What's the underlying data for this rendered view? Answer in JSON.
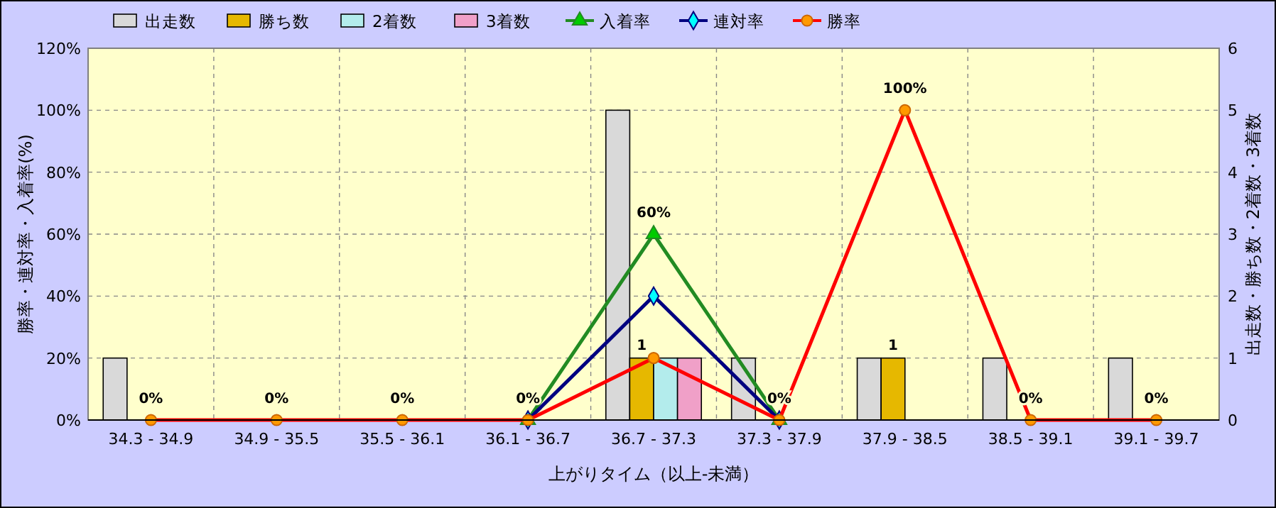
{
  "chart_data": {
    "type": "bar",
    "xlabel": "上がりタイム（以上-未満）",
    "ylabel": "勝率・連対率・入着率(%)",
    "y2label": "出走数・勝ち数・2着数・3着数",
    "categories": [
      "34.3 - 34.9",
      "34.9 - 35.5",
      "35.5 - 36.1",
      "36.1 - 36.7",
      "36.7 - 37.3",
      "37.3 - 37.9",
      "37.9 - 38.5",
      "38.5 - 39.1",
      "39.1 - 39.7"
    ],
    "ylim": [
      0,
      120
    ],
    "yticks": [
      {
        "value": 0,
        "label": "0%"
      },
      {
        "value": 20,
        "label": "20%"
      },
      {
        "value": 40,
        "label": "40%"
      },
      {
        "value": 60,
        "label": "60%"
      },
      {
        "value": 80,
        "label": "80%"
      },
      {
        "value": 100,
        "label": "100%"
      },
      {
        "value": 120,
        "label": "120%"
      }
    ],
    "y2lim": [
      0,
      6
    ],
    "y2ticks": [
      0,
      1,
      2,
      3,
      4,
      5,
      6
    ],
    "grid": true,
    "legend": "top left",
    "series": [
      {
        "name": "出走数",
        "axis": "y2",
        "color": "#d9d9d9",
        "values": [
          1,
          0,
          0,
          0,
          5,
          1,
          1,
          1,
          1
        ]
      },
      {
        "name": "勝ち数",
        "axis": "y2",
        "color": "#e6b800",
        "values": [
          0,
          0,
          0,
          0,
          1,
          0,
          1,
          0,
          0
        ],
        "value_labels": [
          null,
          null,
          null,
          null,
          "1",
          null,
          "1",
          null,
          null
        ]
      },
      {
        "name": "2着数",
        "axis": "y2",
        "color": "#b3ecec",
        "values": [
          0,
          0,
          0,
          0,
          1,
          0,
          0,
          0,
          0
        ]
      },
      {
        "name": "3着数",
        "axis": "y2",
        "color": "#f0a0c8",
        "values": [
          0,
          0,
          0,
          0,
          1,
          0,
          0,
          0,
          0
        ]
      },
      {
        "name": "入着率",
        "type": "line",
        "color": "#228b22",
        "marker": "triangle",
        "values": [
          null,
          null,
          null,
          0,
          60,
          0,
          null,
          null,
          null
        ],
        "value_labels": [
          null,
          null,
          null,
          null,
          "60%",
          null,
          null,
          null,
          null
        ]
      },
      {
        "name": "連対率",
        "type": "line",
        "color": "#000080",
        "marker": "diamond",
        "values": [
          null,
          null,
          null,
          0,
          40,
          0,
          null,
          null,
          null
        ]
      },
      {
        "name": "勝率",
        "type": "line",
        "color": "#ff0000",
        "marker": "circle",
        "values": [
          0,
          0,
          0,
          0,
          20,
          0,
          100,
          0,
          0
        ],
        "value_labels": [
          "0%",
          "0%",
          "0%",
          "0%",
          null,
          "0%",
          "100%",
          "0%",
          "0%"
        ]
      }
    ]
  }
}
